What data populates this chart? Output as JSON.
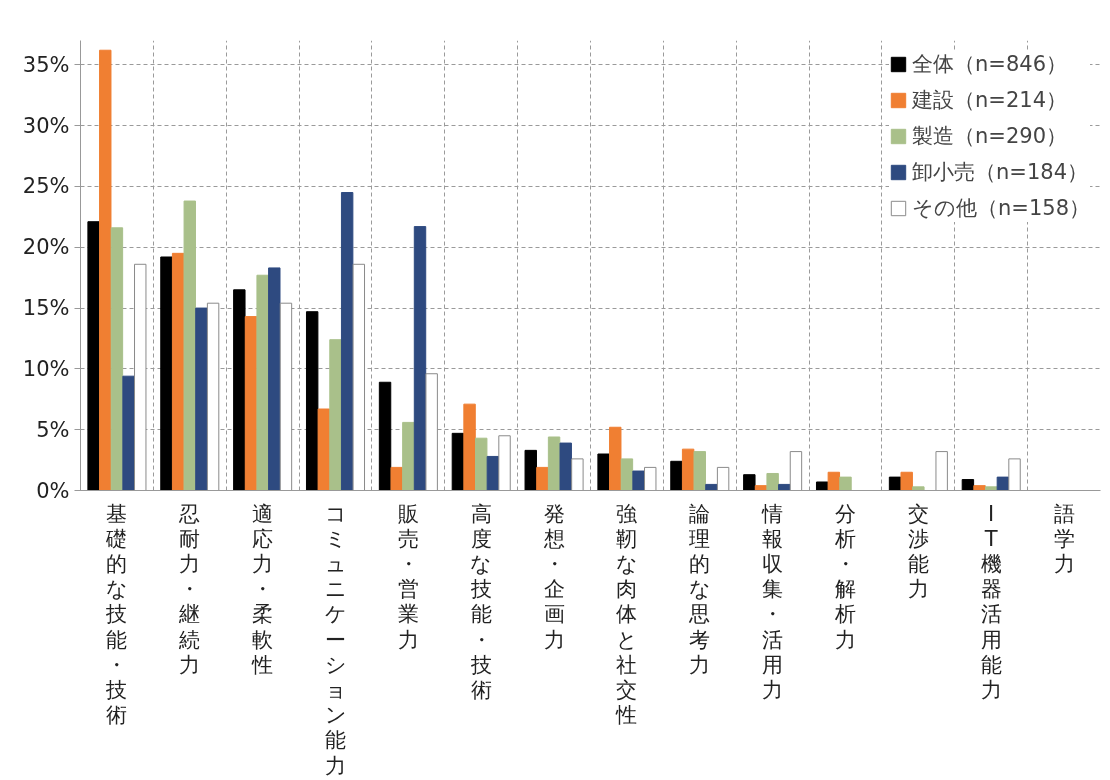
{
  "chart_data": {
    "type": "bar",
    "categories": [
      "基礎的な技能・技術",
      "忍耐力・継続力",
      "適応力・柔軟性",
      "コミュニケーション能力",
      "販売・営業力",
      "高度な技能・技術",
      "発想・企画力",
      "強靭な肉体と社交性",
      "論理的な思考力",
      "情報収集・活用力",
      "分析・解析力",
      "交渉能力",
      "IT機器活用能力",
      "語学力"
    ],
    "series": [
      {
        "name": "全体（n=846）",
        "color": "#000000",
        "values": [
          22.1,
          19.2,
          16.5,
          14.7,
          8.9,
          4.7,
          3.3,
          3.0,
          2.4,
          1.3,
          0.7,
          1.1,
          0.9,
          0
        ]
      },
      {
        "name": "建設（n=214）",
        "color": "#f07f32",
        "values": [
          36.2,
          19.5,
          14.3,
          6.7,
          1.9,
          7.1,
          1.9,
          5.2,
          3.4,
          0.4,
          1.5,
          1.5,
          0.4,
          0
        ]
      },
      {
        "name": "製造（n=290）",
        "color": "#a9c08a",
        "values": [
          21.6,
          23.8,
          17.7,
          12.4,
          5.6,
          4.3,
          4.4,
          2.6,
          3.2,
          1.4,
          1.1,
          0.3,
          0.3,
          0
        ]
      },
      {
        "name": "卸小売（n=184）",
        "color": "#2e4a80",
        "values": [
          9.4,
          15.0,
          18.3,
          24.5,
          21.7,
          2.8,
          3.9,
          1.6,
          0.5,
          0.5,
          0,
          0,
          1.1,
          0
        ]
      },
      {
        "name": "その他（n=158）",
        "color": "#ffffff",
        "values": [
          18.6,
          15.4,
          15.4,
          18.6,
          9.6,
          4.5,
          2.6,
          1.9,
          1.9,
          3.2,
          0,
          3.2,
          2.6,
          0
        ]
      }
    ],
    "ylim": [
      0,
      37
    ],
    "yticks": [
      {
        "value": 0,
        "label": "0%"
      },
      {
        "value": 5,
        "label": "5%"
      },
      {
        "value": 10,
        "label": "10%"
      },
      {
        "value": 15,
        "label": "15%"
      },
      {
        "value": 20,
        "label": "20%"
      },
      {
        "value": 25,
        "label": "25%"
      },
      {
        "value": 30,
        "label": "30%"
      },
      {
        "value": 35,
        "label": "35%"
      }
    ],
    "grid": true,
    "legend": "top right"
  }
}
